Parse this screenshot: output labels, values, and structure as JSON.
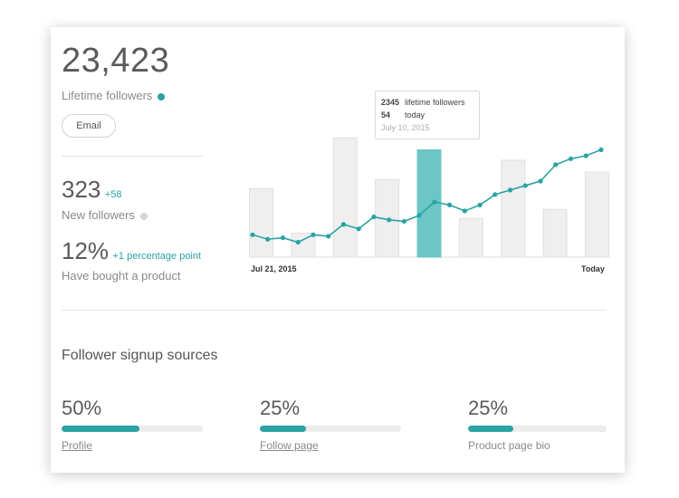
{
  "lifetime": {
    "value": "23,423",
    "label": "Lifetime followers",
    "dot_color": "#2aa3a3",
    "email_label": "Email"
  },
  "new_followers": {
    "value": "323",
    "delta": "+58",
    "label": "New followers",
    "dot_color": "#d6d6d6"
  },
  "bought": {
    "value": "12%",
    "delta": "+1 percentage point",
    "label": "Have bought a product"
  },
  "tooltip": {
    "followers_value": "2345",
    "followers_label": "lifetime followers",
    "today_value": "54",
    "today_label": "today",
    "date": "July 10, 2015"
  },
  "chart_data": {
    "type": "bar",
    "x_tick_start": "Jul 21, 2015",
    "x_tick_end": "Today",
    "bars": [
      46,
      0,
      16,
      0,
      80,
      0,
      52,
      0,
      72,
      0,
      26,
      0,
      65,
      0,
      32,
      0,
      57
    ],
    "highlight_index": 8,
    "bar_color": "#efefef",
    "bar_border": "#e0e0e0",
    "highlight_color": "#6cc6c6",
    "line_series": [
      15,
      12,
      13,
      10,
      15,
      14,
      22,
      19,
      27,
      25,
      24,
      28,
      37,
      35,
      31,
      35,
      42,
      45,
      48,
      51,
      62,
      66,
      68,
      72
    ],
    "line_color": "#2aa3a3",
    "ylim": [
      0,
      85
    ]
  },
  "sources": {
    "title": "Follower signup sources",
    "items": [
      {
        "pct": "50%",
        "fraction": 0.55,
        "label": "Profile",
        "link": true
      },
      {
        "pct": "25%",
        "fraction": 0.33,
        "label": "Follow page",
        "link": true
      },
      {
        "pct": "25%",
        "fraction": 0.33,
        "label": "Product page bio",
        "link": false
      }
    ]
  }
}
